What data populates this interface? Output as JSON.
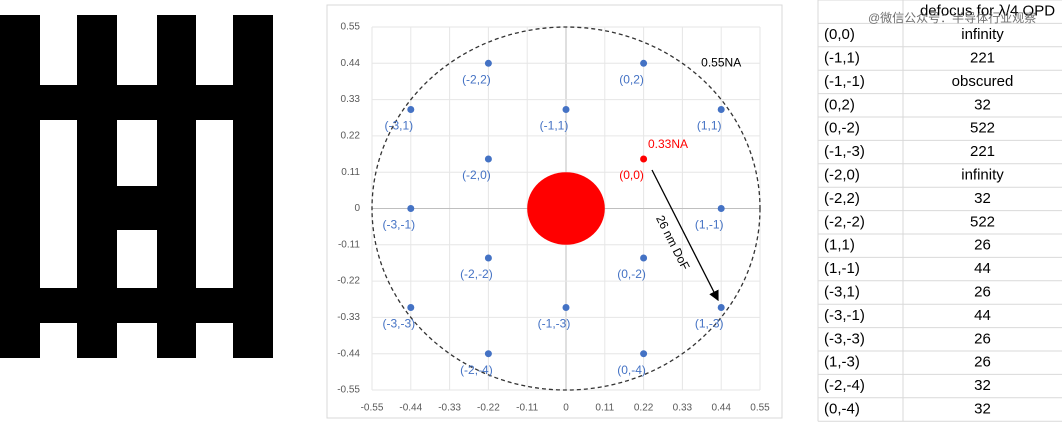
{
  "chart_data": {
    "type": "scatter",
    "xlim": [
      -0.55,
      0.55
    ],
    "ylim": [
      -0.55,
      0.55
    ],
    "xticks": [
      -0.55,
      -0.44,
      -0.33,
      -0.22,
      -0.11,
      0,
      0.11,
      0.22,
      0.33,
      0.44,
      0.55
    ],
    "yticks": [
      -0.55,
      -0.44,
      -0.33,
      -0.22,
      -0.11,
      0,
      0.11,
      0.22,
      0.33,
      0.44,
      0.55
    ],
    "grid": true,
    "series": [
      {
        "color": "#4472c4",
        "x": [
          -0.22,
          0.22,
          -0.44,
          0,
          0.44,
          -0.22,
          -0.44,
          0.44,
          -0.22,
          0.22,
          -0.44,
          0,
          0.44,
          -0.22,
          0.22
        ],
        "values": [
          0.44,
          0.44,
          0.3,
          0.3,
          0.3,
          0.15,
          0,
          0,
          -0.15,
          -0.15,
          -0.3,
          -0.3,
          -0.3,
          -0.44,
          -0.44
        ],
        "labels": [
          "(-2,2)",
          "(0,2)",
          "(-3,1)",
          "(-1,1)",
          "(1,1)",
          "(-2,0)",
          "(-3,-1)",
          "(1,-1)",
          "(-2,-2)",
          "(0,-2)",
          "(-3,-3)",
          "(-1,-3)",
          "(1,-3)",
          "(-2,-4)",
          "(0,-4)"
        ]
      },
      {
        "color": "#ff0000",
        "x": [
          0.22
        ],
        "values": [
          0.15
        ],
        "labels": [
          "(0,0)"
        ]
      }
    ],
    "circles": [
      {
        "r": 0.55,
        "color": "#333333",
        "dashed": true,
        "label": "0.55NA"
      },
      {
        "r": 0.11,
        "color": "#ff0000",
        "dashed": false
      }
    ],
    "annotations": [
      "0.33NA",
      "26 nm DoF"
    ]
  },
  "watermark": "@微信公众号：半导体行业观察",
  "table": {
    "header": "defocus for λ/4 OPD",
    "rows": [
      [
        "(0,0)",
        "infinity"
      ],
      [
        "(-1,1)",
        "221"
      ],
      [
        "(-1,-1)",
        "obscured"
      ],
      [
        "(0,2)",
        "32"
      ],
      [
        "(0,-2)",
        "522"
      ],
      [
        "(-1,-3)",
        "221"
      ],
      [
        "(-2,0)",
        "infinity"
      ],
      [
        "(-2,2)",
        "32"
      ],
      [
        "(-2,-2)",
        "522"
      ],
      [
        "(1,1)",
        "26"
      ],
      [
        "(1,-1)",
        "44"
      ],
      [
        "(-3,1)",
        "26"
      ],
      [
        "(-3,-1)",
        "44"
      ],
      [
        "(-3,-3)",
        "26"
      ],
      [
        "(1,-3)",
        "26"
      ],
      [
        "(-2,-4)",
        "32"
      ],
      [
        "(0,-4)",
        "32"
      ]
    ]
  }
}
